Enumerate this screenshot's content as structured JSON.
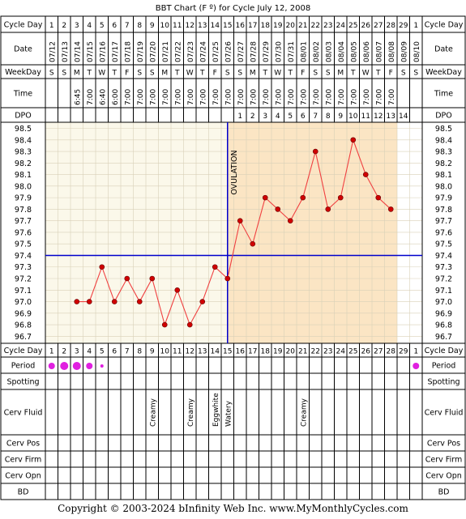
{
  "title": "BBT Chart (F º) for Cycle July 12, 2008",
  "row_labels": {
    "cycle_day": "Cycle Day",
    "date": "Date",
    "weekday": "WeekDay",
    "time": "Time",
    "dpo": "DPO",
    "period": "Period",
    "spotting": "Spotting",
    "cerv_fluid": "Cerv Fluid",
    "cerv_pos": "Cerv Pos",
    "cerv_firm": "Cerv Firm",
    "cerv_opn": "Cerv Opn",
    "bd": "BD"
  },
  "copyright": "Copyright © 2003-2024 bInfinity Web Inc.    www.MyMonthlyCycles.com",
  "colors": {
    "pre_ovulation_bg": "#fbf8ea",
    "post_ovulation_bg": "#fbe5c4",
    "line": "#f04040",
    "marker": "#d00000",
    "coverline": "#0000cc",
    "period_dot": "#e020e0",
    "grid": "#d9d0b8"
  },
  "chart_data": {
    "type": "line",
    "title": "BBT Chart (F º) for Cycle July 12, 2008",
    "cycle_days": [
      "1",
      "2",
      "3",
      "4",
      "5",
      "6",
      "7",
      "8",
      "9",
      "10",
      "11",
      "12",
      "13",
      "14",
      "15",
      "16",
      "17",
      "18",
      "19",
      "20",
      "21",
      "22",
      "23",
      "24",
      "25",
      "26",
      "27",
      "28",
      "29",
      "1"
    ],
    "dates": [
      "07/12",
      "07/13",
      "07/14",
      "07/15",
      "07/16",
      "07/17",
      "07/18",
      "07/19",
      "07/20",
      "07/21",
      "07/22",
      "07/23",
      "07/24",
      "07/25",
      "07/26",
      "07/27",
      "07/28",
      "07/29",
      "07/30",
      "07/31",
      "08/01",
      "08/02",
      "08/03",
      "08/04",
      "08/05",
      "08/06",
      "08/07",
      "08/08",
      "08/09",
      "08/10"
    ],
    "weekdays": [
      "S",
      "S",
      "M",
      "T",
      "W",
      "T",
      "F",
      "S",
      "S",
      "M",
      "T",
      "W",
      "T",
      "F",
      "S",
      "S",
      "M",
      "T",
      "W",
      "T",
      "F",
      "S",
      "S",
      "M",
      "T",
      "W",
      "T",
      "F",
      "S",
      "S"
    ],
    "times": [
      "",
      "",
      "6:45",
      "7:00",
      "6:40",
      "6:00",
      "7:00",
      "7:00",
      "7:00",
      "7:00",
      "7:00",
      "7:00",
      "7:00",
      "7:00",
      "7:00",
      "7:00",
      "7:00",
      "7:00",
      "7:00",
      "7:00",
      "7:00",
      "7:00",
      "7:00",
      "7:00",
      "7:00",
      "7:00",
      "7:00",
      "7:00",
      "",
      ""
    ],
    "dpo": [
      "",
      "",
      "",
      "",
      "",
      "",
      "",
      "",
      "",
      "",
      "",
      "",
      "",
      "",
      "",
      "1",
      "2",
      "3",
      "4",
      "5",
      "6",
      "7",
      "8",
      "9",
      "10",
      "11",
      "12",
      "13",
      "14",
      ""
    ],
    "temperatures": [
      null,
      null,
      97.0,
      97.0,
      97.3,
      97.0,
      97.2,
      97.0,
      97.2,
      96.8,
      97.1,
      96.8,
      97.0,
      97.3,
      97.2,
      97.7,
      97.5,
      97.9,
      97.8,
      97.7,
      97.9,
      98.3,
      97.8,
      97.9,
      98.4,
      98.1,
      97.9,
      97.8,
      null,
      null
    ],
    "y_ticks": [
      "98.5",
      "98.4",
      "98.3",
      "98.2",
      "98.1",
      "98.0",
      "97.9",
      "97.8",
      "97.7",
      "97.6",
      "97.5",
      "97.4",
      "97.3",
      "97.2",
      "97.1",
      "97.0",
      "96.9",
      "96.8",
      "96.7"
    ],
    "ylim": [
      96.7,
      98.5
    ],
    "coverline": 97.4,
    "ovulation_day": 15,
    "ovulation_label": "OVULATION",
    "period": [
      2,
      3,
      3,
      2,
      1,
      0,
      0,
      0,
      0,
      0,
      0,
      0,
      0,
      0,
      0,
      0,
      0,
      0,
      0,
      0,
      0,
      0,
      0,
      0,
      0,
      0,
      0,
      0,
      0,
      2
    ],
    "cerv_fluid": [
      "",
      "",
      "",
      "",
      "",
      "",
      "",
      "",
      "Creamy",
      "",
      "",
      "Creamy",
      "",
      "Eggwhite",
      "Watery",
      "",
      "",
      "",
      "",
      "",
      "Creamy",
      "",
      "",
      "",
      "",
      "",
      "",
      "",
      "",
      ""
    ]
  }
}
